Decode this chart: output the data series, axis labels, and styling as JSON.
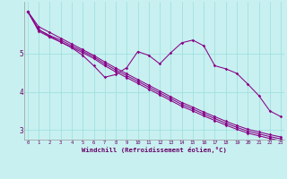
{
  "bg_color": "#c8f0f0",
  "line_color": "#880088",
  "grid_color": "#99dddd",
  "axis_color": "#660066",
  "xlabel": "Windchill (Refroidissement éolien,°C)",
  "xlim": [
    -0.3,
    23.3
  ],
  "ylim": [
    2.75,
    6.35
  ],
  "yticks": [
    3,
    4,
    5
  ],
  "xticks": [
    0,
    1,
    2,
    3,
    4,
    5,
    6,
    7,
    8,
    9,
    10,
    11,
    12,
    13,
    14,
    15,
    16,
    17,
    18,
    19,
    20,
    21,
    22,
    23
  ],
  "line1_y": [
    6.1,
    5.7,
    5.55,
    5.4,
    5.25,
    5.1,
    4.95,
    4.78,
    4.62,
    4.47,
    4.32,
    4.17,
    4.02,
    3.87,
    3.72,
    3.6,
    3.47,
    3.35,
    3.23,
    3.12,
    3.02,
    2.95,
    2.88,
    2.82
  ],
  "line2_y": [
    6.1,
    5.62,
    5.47,
    5.35,
    5.2,
    5.06,
    4.91,
    4.73,
    4.57,
    4.42,
    4.27,
    4.12,
    3.97,
    3.82,
    3.67,
    3.55,
    3.42,
    3.3,
    3.18,
    3.07,
    2.97,
    2.9,
    2.83,
    2.77
  ],
  "line3_y": [
    6.1,
    5.58,
    5.43,
    5.3,
    5.16,
    5.02,
    4.87,
    4.68,
    4.52,
    4.37,
    4.22,
    4.07,
    3.92,
    3.77,
    3.62,
    3.5,
    3.37,
    3.25,
    3.13,
    3.02,
    2.92,
    2.85,
    2.78,
    2.72
  ],
  "line4_y": [
    6.1,
    5.62,
    5.45,
    5.3,
    5.15,
    4.95,
    4.68,
    4.38,
    4.45,
    4.63,
    5.05,
    4.95,
    4.73,
    5.02,
    5.28,
    5.35,
    5.2,
    4.68,
    4.6,
    4.48,
    4.2,
    3.9,
    3.5,
    3.35
  ]
}
